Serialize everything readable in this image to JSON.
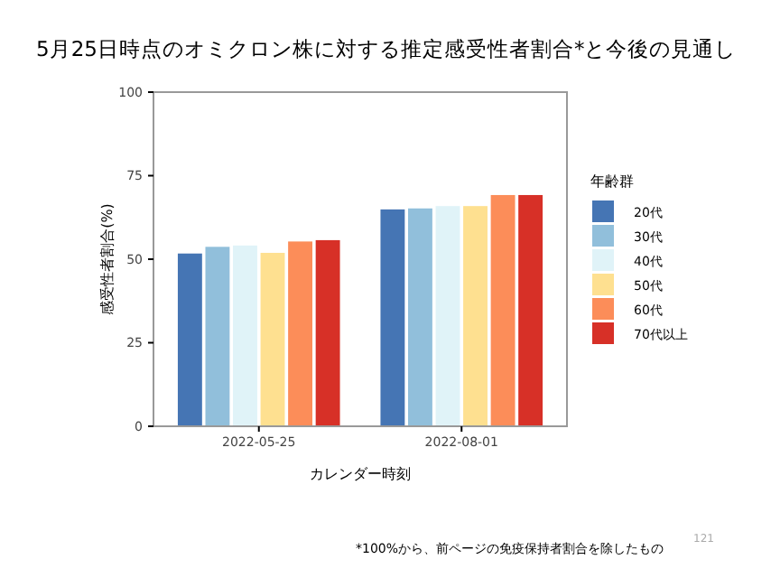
{
  "chart_data": {
    "type": "bar",
    "title": "5月25日時点のオミクロン株に対する推定感受性者割合*と今後の見通し",
    "xlabel": "カレンダー時刻",
    "ylabel": "感受性者割合(%)",
    "legend_title": "年齢群",
    "categories": [
      "2022-05-25",
      "2022-08-01"
    ],
    "series": [
      {
        "name": "20代",
        "color": "#4575b4",
        "values": [
          51.7,
          64.9
        ]
      },
      {
        "name": "30代",
        "color": "#91bfdb",
        "values": [
          53.7,
          65.2
        ]
      },
      {
        "name": "40代",
        "color": "#e0f3f8",
        "values": [
          54.1,
          65.9
        ]
      },
      {
        "name": "50代",
        "color": "#fee090",
        "values": [
          51.9,
          65.9
        ]
      },
      {
        "name": "60代",
        "color": "#fc8d59",
        "values": [
          55.3,
          69.2
        ]
      },
      {
        "name": "70代以上",
        "color": "#d73027",
        "values": [
          55.7,
          69.2
        ]
      }
    ],
    "ylim": [
      0,
      100
    ],
    "yticks": [
      0,
      25,
      50,
      75,
      100
    ],
    "grid": false,
    "legend": "right",
    "annotations": [
      "*100%から、前ページの免疫保持者割合を除したもの",
      "121"
    ]
  }
}
